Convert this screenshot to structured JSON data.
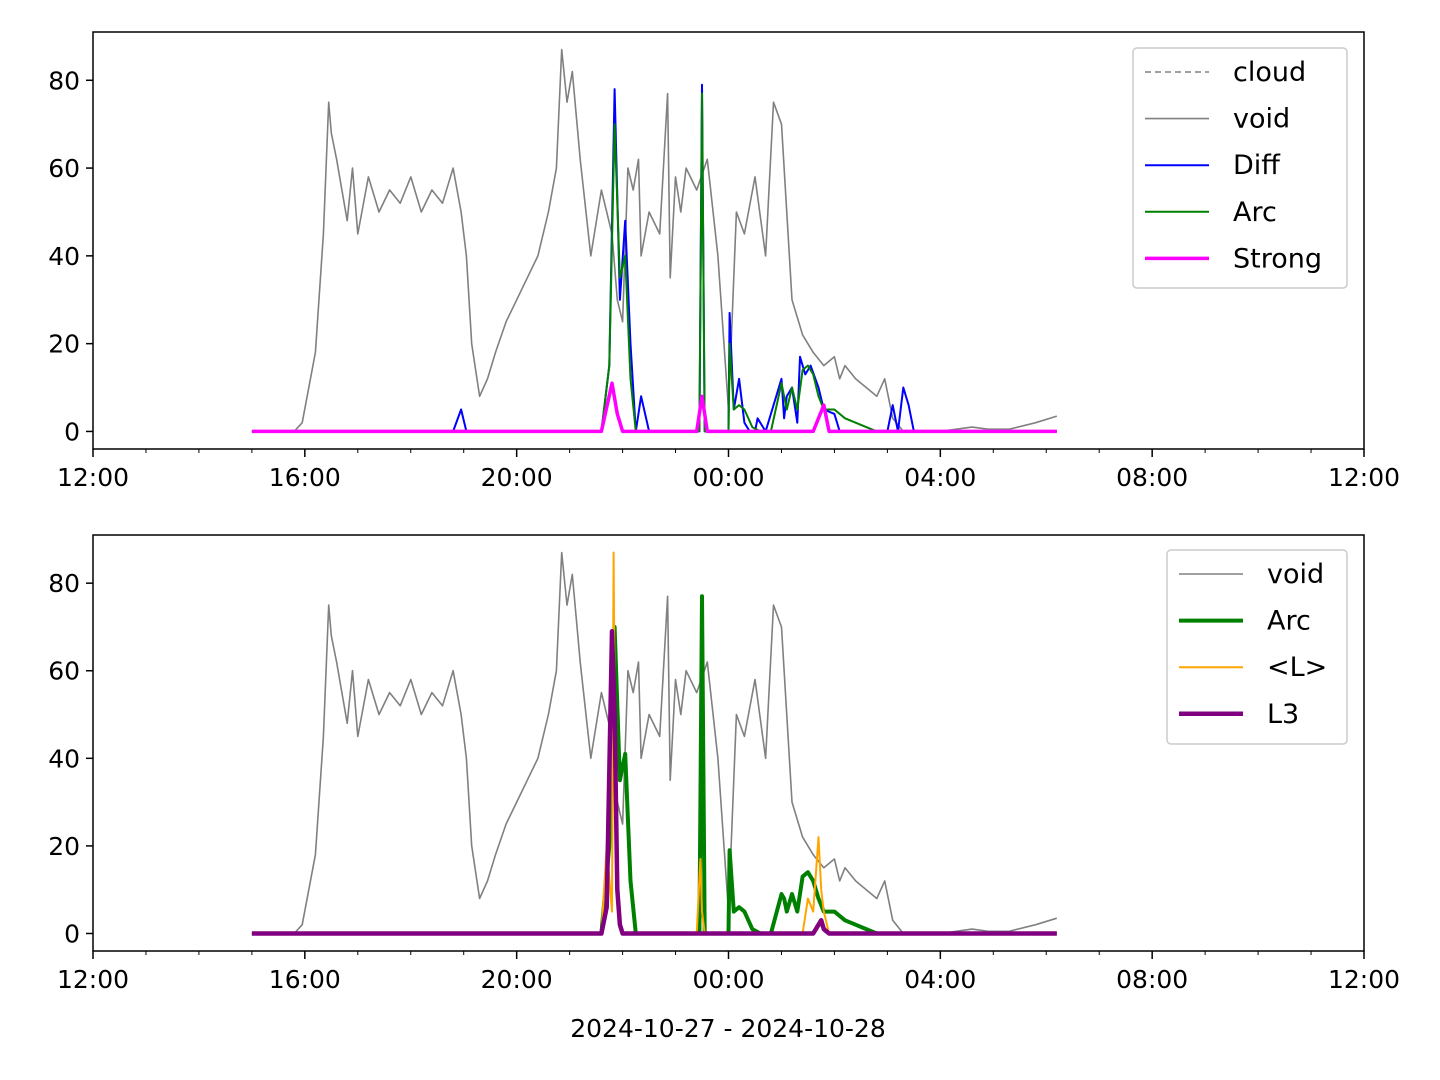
{
  "chart_data": [
    {
      "type": "line",
      "title": "",
      "xlabel": "",
      "ylabel": "",
      "xlim": [
        "12:00",
        "12:00 (+1 day)"
      ],
      "ylim": [
        -4,
        91
      ],
      "yticks": [
        "0",
        "20",
        "40",
        "60",
        "80"
      ],
      "xticks": [
        "12:00",
        "16:00",
        "20:00",
        "00:00",
        "04:00",
        "08:00",
        "12:00"
      ],
      "grid": false,
      "legend_position": "top-right",
      "legend": [
        "cloud",
        "void",
        "Diff",
        "Arc",
        "Strong"
      ],
      "x_unit": "hours after 2024-10-27 12:00",
      "series": [
        {
          "name": "cloud",
          "style": "dashed",
          "color": "#808080",
          "x": [],
          "y": []
        },
        {
          "name": "void",
          "color": "#808080",
          "x": [
            3.0,
            3.8,
            3.95,
            4.2,
            4.35,
            4.45,
            4.5,
            4.6,
            4.7,
            4.8,
            4.9,
            5.0,
            5.2,
            5.4,
            5.6,
            5.8,
            6.0,
            6.2,
            6.4,
            6.6,
            6.8,
            6.95,
            7.05,
            7.15,
            7.3,
            7.45,
            7.6,
            7.8,
            8.0,
            8.2,
            8.4,
            8.6,
            8.75,
            8.85,
            8.95,
            9.05,
            9.2,
            9.4,
            9.6,
            9.8,
            9.9,
            10.0,
            10.1,
            10.2,
            10.3,
            10.35,
            10.5,
            10.7,
            10.85,
            10.9,
            11.0,
            11.1,
            11.2,
            11.4,
            11.6,
            11.8,
            12.0,
            12.15,
            12.3,
            12.5,
            12.7,
            12.85,
            13.0,
            13.2,
            13.4,
            13.6,
            13.8,
            14.0,
            14.1,
            14.2,
            14.4,
            14.6,
            14.8,
            14.95,
            15.1,
            15.3,
            15.5,
            15.7,
            16.0,
            16.3,
            16.6,
            16.9,
            17.3,
            17.8,
            18.2
          ],
          "y": [
            0,
            0,
            2,
            18,
            45,
            75,
            68,
            62,
            55,
            48,
            60,
            45,
            58,
            50,
            55,
            52,
            58,
            50,
            55,
            52,
            60,
            50,
            40,
            20,
            8,
            12,
            18,
            25,
            30,
            35,
            40,
            50,
            60,
            87,
            75,
            82,
            62,
            40,
            55,
            45,
            30,
            25,
            60,
            55,
            62,
            40,
            50,
            45,
            77,
            35,
            58,
            50,
            60,
            55,
            62,
            40,
            5,
            50,
            45,
            58,
            40,
            75,
            70,
            30,
            22,
            18,
            15,
            17,
            12,
            15,
            12,
            10,
            8,
            12,
            3,
            0,
            0,
            0,
            0,
            0.5,
            1,
            0.5,
            0.5,
            2,
            3.5
          ]
        },
        {
          "name": "Diff",
          "color": "#0000ff",
          "x": [
            3.0,
            6.8,
            6.95,
            7.05,
            7.15,
            9.6,
            9.75,
            9.85,
            9.95,
            10.05,
            10.15,
            10.25,
            10.35,
            10.5,
            10.6,
            10.7,
            10.8,
            11.3,
            11.45,
            11.5,
            11.55,
            11.65,
            11.8,
            12.0,
            12.02,
            12.1,
            12.2,
            12.3,
            12.4,
            12.5,
            12.55,
            12.7,
            13.0,
            13.05,
            13.1,
            13.2,
            13.3,
            13.35,
            13.45,
            13.55,
            13.7,
            13.8,
            14.0,
            14.1,
            15.0,
            15.1,
            15.2,
            15.3,
            15.4,
            15.5,
            15.6,
            18.2
          ],
          "y": [
            0,
            0,
            5,
            0,
            0,
            0,
            15,
            78,
            30,
            48,
            20,
            0,
            8,
            0,
            0,
            0,
            0,
            0,
            0,
            79,
            0,
            0,
            0,
            0,
            27,
            5,
            12,
            2,
            0,
            0,
            3,
            0,
            12,
            3,
            8,
            10,
            2,
            17,
            13,
            15,
            10,
            5,
            4,
            0,
            0,
            6,
            0,
            10,
            6,
            0,
            0,
            0
          ]
        },
        {
          "name": "Arc",
          "color": "#008000",
          "x": [
            3.0,
            9.6,
            9.75,
            9.85,
            9.95,
            10.05,
            10.15,
            10.25,
            10.4,
            11.3,
            11.45,
            11.5,
            11.55,
            11.65,
            11.9,
            12.0,
            12.02,
            12.1,
            12.2,
            12.3,
            12.45,
            12.6,
            12.8,
            13.0,
            13.05,
            13.1,
            13.2,
            13.3,
            13.4,
            13.5,
            13.6,
            13.7,
            13.8,
            14.0,
            14.2,
            14.4,
            14.6,
            14.8,
            18.2
          ],
          "y": [
            0,
            0,
            15,
            70,
            35,
            40,
            12,
            0,
            0,
            0,
            0,
            77,
            0,
            0,
            0,
            0,
            20,
            5,
            6,
            5,
            1,
            0,
            0,
            11,
            8,
            5,
            10,
            5,
            14,
            15,
            13,
            8,
            5,
            5,
            3,
            2,
            1,
            0,
            0
          ]
        },
        {
          "name": "Strong",
          "color": "#ff00ff",
          "x": [
            3.0,
            9.6,
            9.8,
            9.9,
            10.0,
            10.1,
            11.4,
            11.5,
            11.6,
            13.6,
            13.8,
            13.9,
            18.2
          ],
          "y": [
            0,
            0,
            11,
            4,
            0,
            0,
            0,
            8,
            0,
            0,
            6,
            0,
            0
          ]
        }
      ]
    },
    {
      "type": "line",
      "title": "",
      "xlabel": "2024-10-27 - 2024-10-28",
      "ylabel": "",
      "xlim": [
        "12:00",
        "12:00 (+1 day)"
      ],
      "ylim": [
        -4,
        91
      ],
      "yticks": [
        "0",
        "20",
        "40",
        "60",
        "80"
      ],
      "xticks": [
        "12:00",
        "16:00",
        "20:00",
        "00:00",
        "04:00",
        "08:00",
        "12:00"
      ],
      "grid": false,
      "legend_position": "top-right",
      "legend": [
        "void",
        "Arc",
        "<L>",
        "L3"
      ],
      "x_unit": "hours after 2024-10-27 12:00",
      "series": [
        {
          "name": "void",
          "color": "#808080",
          "x": [
            3.0,
            3.8,
            3.95,
            4.2,
            4.35,
            4.45,
            4.5,
            4.6,
            4.7,
            4.8,
            4.9,
            5.0,
            5.2,
            5.4,
            5.6,
            5.8,
            6.0,
            6.2,
            6.4,
            6.6,
            6.8,
            6.95,
            7.05,
            7.15,
            7.3,
            7.45,
            7.6,
            7.8,
            8.0,
            8.2,
            8.4,
            8.6,
            8.75,
            8.85,
            8.95,
            9.05,
            9.2,
            9.4,
            9.6,
            9.8,
            9.9,
            10.0,
            10.1,
            10.2,
            10.3,
            10.35,
            10.5,
            10.7,
            10.85,
            10.9,
            11.0,
            11.1,
            11.2,
            11.4,
            11.6,
            11.8,
            12.0,
            12.15,
            12.3,
            12.5,
            12.7,
            12.85,
            13.0,
            13.2,
            13.4,
            13.6,
            13.8,
            14.0,
            14.1,
            14.2,
            14.4,
            14.6,
            14.8,
            14.95,
            15.1,
            15.3,
            15.5,
            15.7,
            16.0,
            16.3,
            16.6,
            16.9,
            17.3,
            17.8,
            18.2
          ],
          "y": [
            0,
            0,
            2,
            18,
            45,
            75,
            68,
            62,
            55,
            48,
            60,
            45,
            58,
            50,
            55,
            52,
            58,
            50,
            55,
            52,
            60,
            50,
            40,
            20,
            8,
            12,
            18,
            25,
            30,
            35,
            40,
            50,
            60,
            87,
            75,
            82,
            62,
            40,
            55,
            45,
            30,
            25,
            60,
            55,
            62,
            40,
            50,
            45,
            77,
            35,
            58,
            50,
            60,
            55,
            62,
            40,
            5,
            50,
            45,
            58,
            40,
            75,
            70,
            30,
            22,
            18,
            15,
            17,
            12,
            15,
            12,
            10,
            8,
            12,
            3,
            0,
            0,
            0,
            0,
            0.5,
            1,
            0.5,
            0.5,
            2,
            3.5
          ]
        },
        {
          "name": "Arc",
          "color": "#008000",
          "x": [
            3.0,
            9.6,
            9.75,
            9.85,
            9.95,
            10.05,
            10.15,
            10.25,
            10.4,
            11.3,
            11.45,
            11.5,
            11.55,
            11.65,
            11.9,
            12.0,
            12.02,
            12.1,
            12.2,
            12.3,
            12.45,
            12.6,
            12.8,
            13.0,
            13.05,
            13.1,
            13.2,
            13.3,
            13.4,
            13.5,
            13.6,
            13.7,
            13.8,
            14.0,
            14.2,
            14.4,
            14.6,
            14.8,
            18.2
          ],
          "y": [
            0,
            0,
            20,
            70,
            35,
            41,
            12,
            0,
            0,
            0,
            0,
            77,
            0,
            0,
            0,
            0,
            19,
            5,
            6,
            5,
            1,
            0,
            0,
            9,
            8,
            5,
            9,
            5,
            13,
            14,
            12,
            8,
            5,
            5,
            3,
            2,
            1,
            0,
            0
          ]
        },
        {
          "name": "<L>",
          "color": "#ffa500",
          "x": [
            3.0,
            9.6,
            9.7,
            9.8,
            9.83,
            9.86,
            9.9,
            9.95,
            10.0,
            10.1,
            11.4,
            11.47,
            11.5,
            11.55,
            11.6,
            13.4,
            13.5,
            13.6,
            13.7,
            13.75,
            13.8,
            13.9,
            18.2
          ],
          "y": [
            0,
            0,
            20,
            5,
            87,
            30,
            10,
            3,
            0,
            0,
            0,
            17,
            5,
            0,
            0,
            0,
            8,
            5,
            22,
            10,
            5,
            0,
            0
          ]
        },
        {
          "name": "L3",
          "color": "#800080",
          "x": [
            3.0,
            9.6,
            9.7,
            9.8,
            9.85,
            9.9,
            9.95,
            10.0,
            10.1,
            13.6,
            13.75,
            13.8,
            13.9,
            18.2
          ],
          "y": [
            0,
            0,
            6,
            69,
            50,
            10,
            2,
            0,
            0,
            0,
            3,
            1,
            0,
            0
          ]
        }
      ]
    }
  ]
}
